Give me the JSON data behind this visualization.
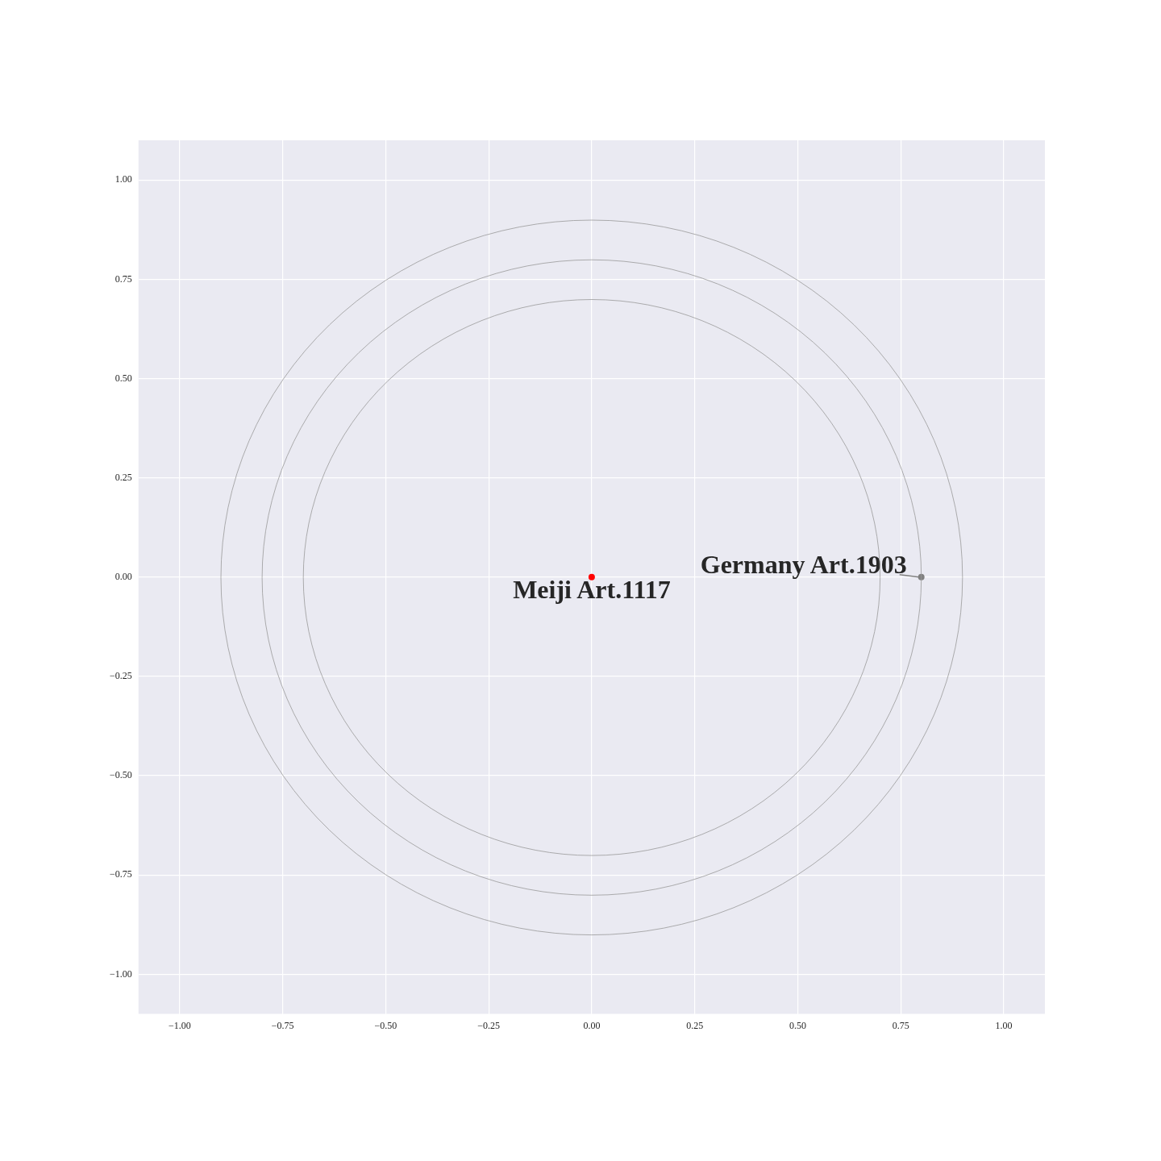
{
  "chart_data": {
    "type": "scatter",
    "xlim": [
      -1.1,
      1.1
    ],
    "ylim": [
      -1.1,
      1.1
    ],
    "xticks": [
      {
        "value": -1,
        "label": "−1.00"
      },
      {
        "value": -0.75,
        "label": "−0.75"
      },
      {
        "value": -0.5,
        "label": "−0.50"
      },
      {
        "value": -0.25,
        "label": "−0.25"
      },
      {
        "value": 0,
        "label": "0.00"
      },
      {
        "value": 0.25,
        "label": "0.25"
      },
      {
        "value": 0.5,
        "label": "0.50"
      },
      {
        "value": 0.75,
        "label": "0.75"
      },
      {
        "value": 1,
        "label": "1.00"
      }
    ],
    "yticks": [
      {
        "value": -1,
        "label": "−1.00"
      },
      {
        "value": -0.75,
        "label": "−0.75"
      },
      {
        "value": -0.5,
        "label": "−0.50"
      },
      {
        "value": -0.25,
        "label": "−0.25"
      },
      {
        "value": 0,
        "label": "0.00"
      },
      {
        "value": 0.25,
        "label": "0.25"
      },
      {
        "value": 0.5,
        "label": "0.50"
      },
      {
        "value": 0.75,
        "label": "0.75"
      },
      {
        "value": 1,
        "label": "1.00"
      }
    ],
    "grid": true,
    "series": [
      {
        "color": "#ff0000",
        "marker": "circle",
        "x": [
          0
        ],
        "values": [
          0
        ]
      },
      {
        "color": "#808080",
        "marker": "circle",
        "x": [
          0.8
        ],
        "values": [
          0
        ]
      }
    ],
    "annotations": [
      {
        "text": "Meiji Art.1117",
        "x": 0,
        "y": 0
      },
      {
        "text": "Germany Art.1903",
        "x": 0.8,
        "y": 0
      }
    ]
  }
}
